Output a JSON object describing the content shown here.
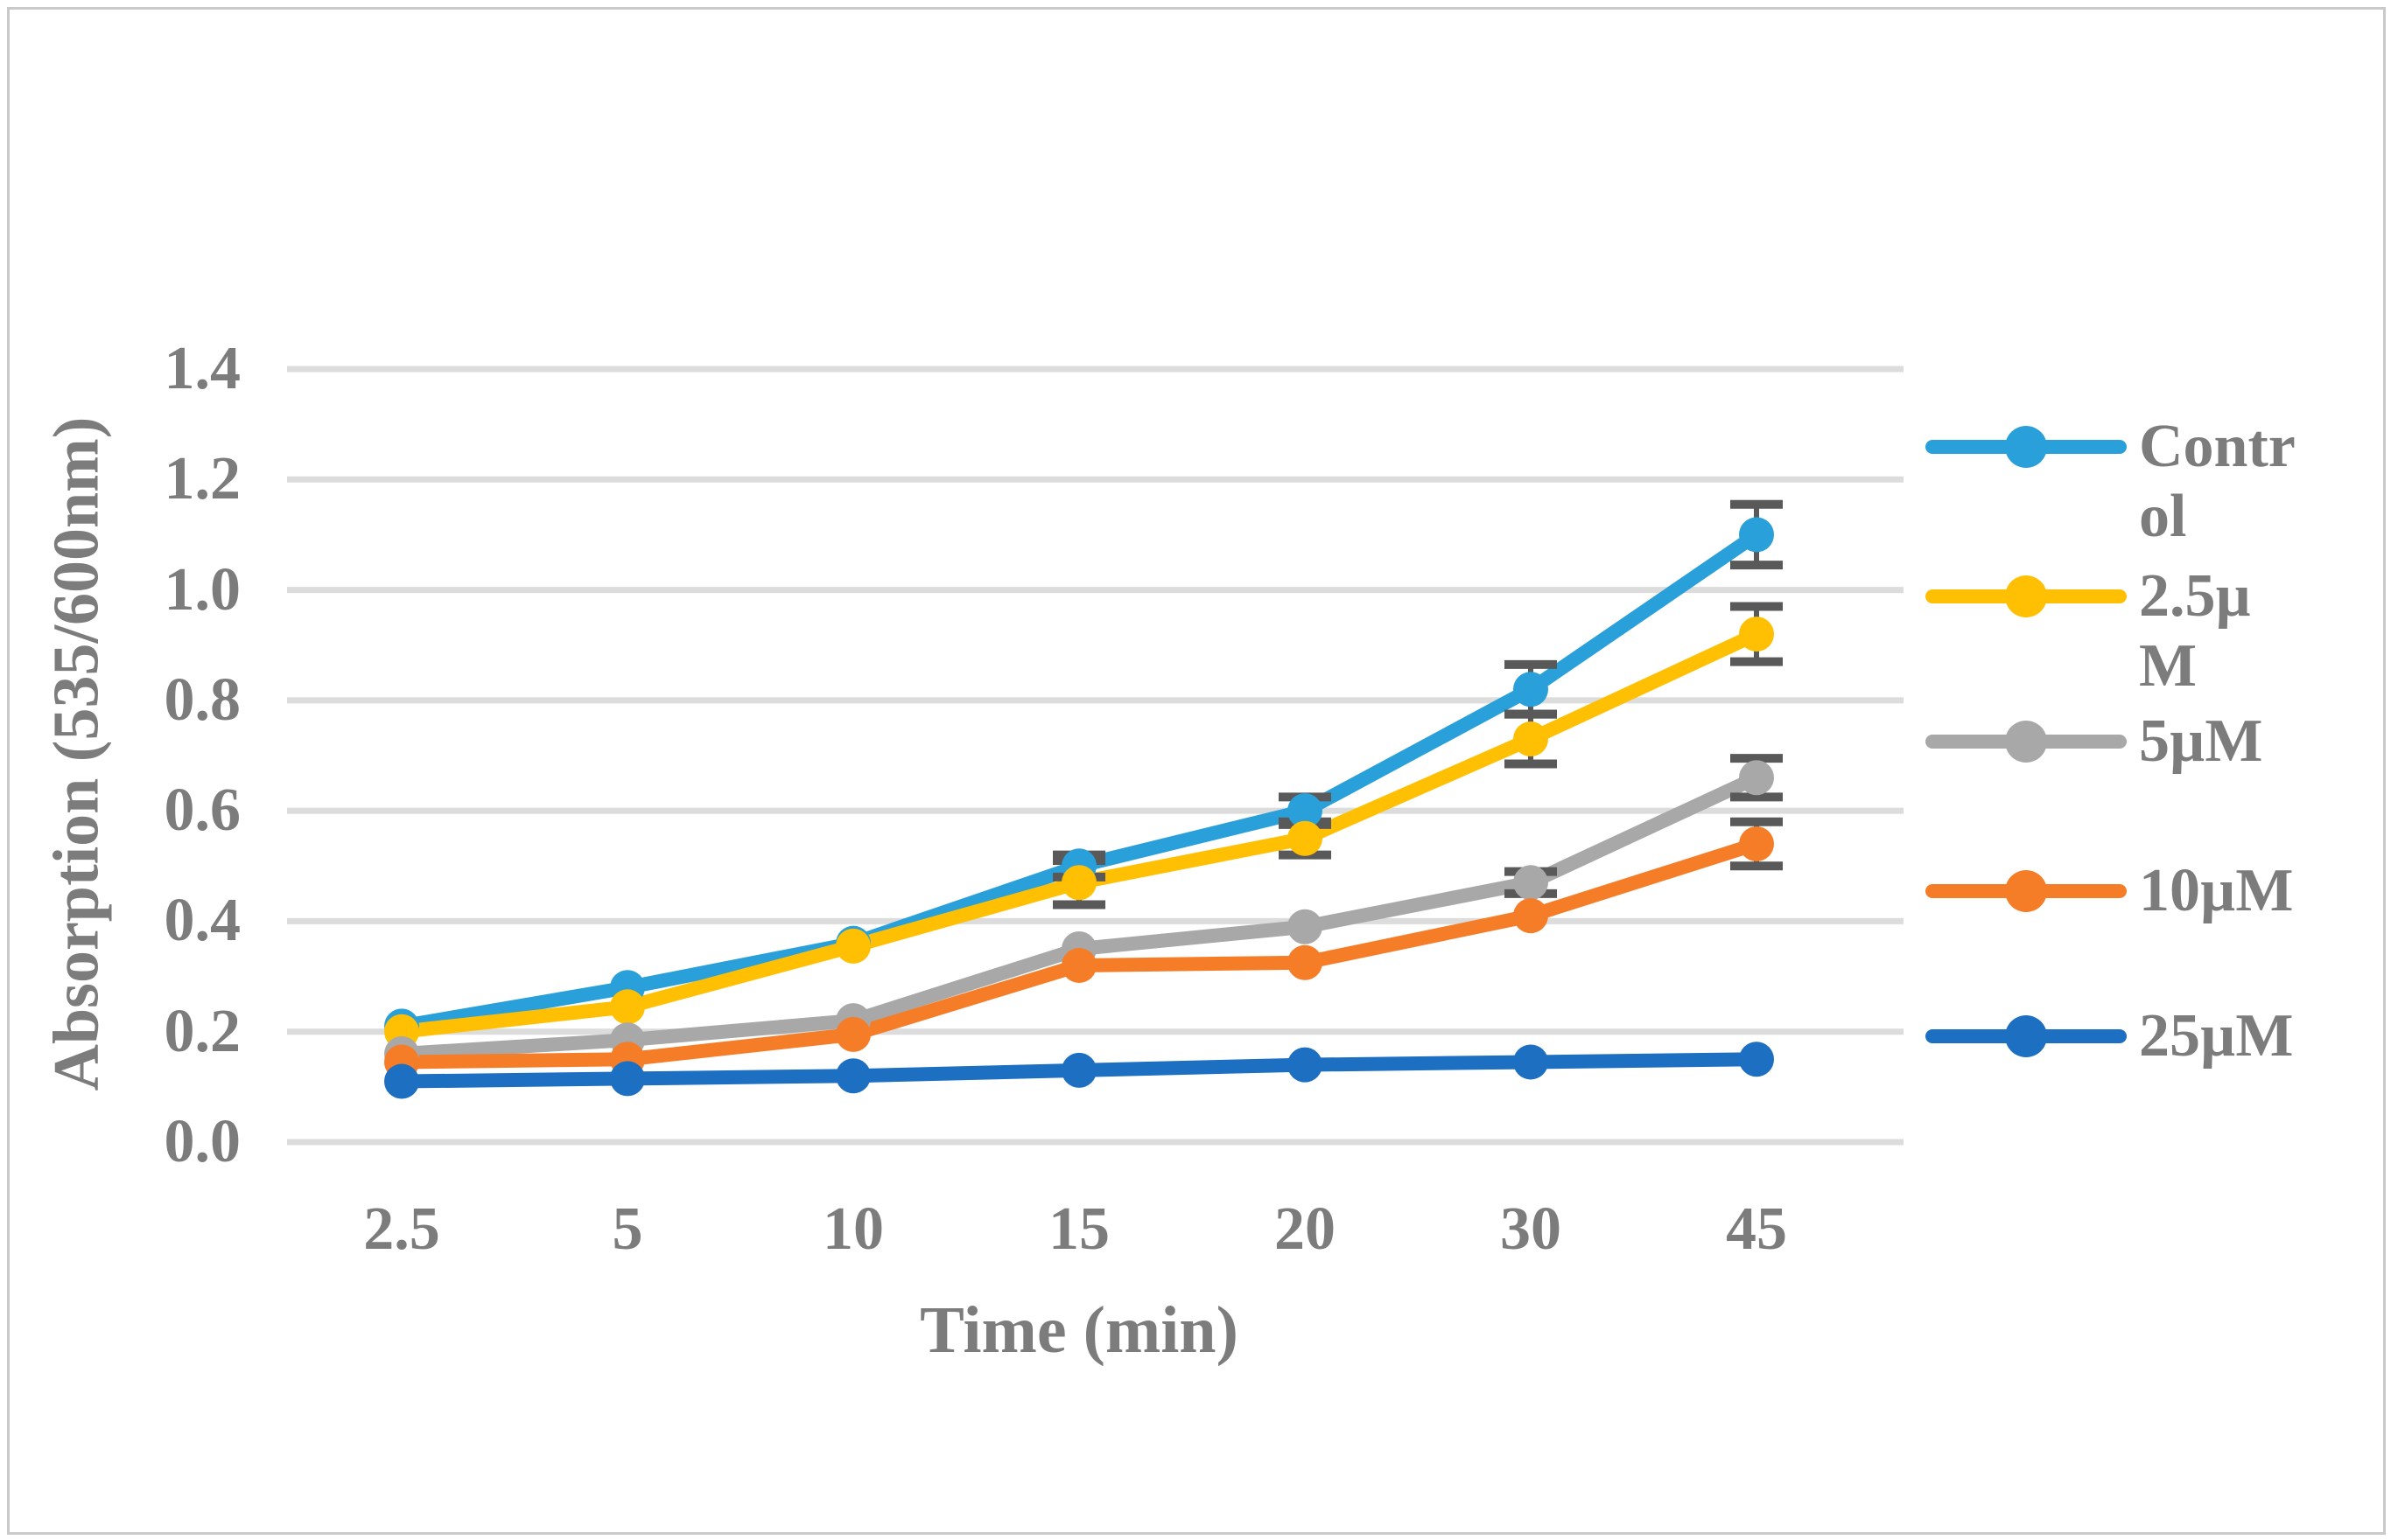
{
  "figure": {
    "background": "#ffffff",
    "border_color": "#c9c9c9",
    "text_color": "#7c7c7c",
    "gridline_color": "#dcdcdc",
    "error_bar_color": "#595959"
  },
  "chart_data": {
    "type": "line",
    "title": "",
    "xlabel": "Time (min)",
    "ylabel": "Absorption (535/600nm)",
    "categories": [
      "2.5",
      "5",
      "10",
      "15",
      "20",
      "30",
      "45"
    ],
    "y_ticks": [
      "0.0",
      "0.2",
      "0.4",
      "0.6",
      "0.8",
      "1.0",
      "1.2",
      "1.4"
    ],
    "ylim": [
      0,
      1.4
    ],
    "grid": true,
    "legend_position": "right",
    "series": [
      {
        "name": "Control",
        "color": "#2aa0da",
        "values": [
          0.21,
          0.28,
          0.36,
          0.5,
          0.6,
          0.82,
          1.1
        ],
        "errors": [
          0,
          0,
          0,
          0.02,
          0.025,
          0.045,
          0.055
        ]
      },
      {
        "name": "2.5µM",
        "color": "#ffc003",
        "values": [
          0.2,
          0.245,
          0.355,
          0.47,
          0.55,
          0.73,
          0.92
        ],
        "errors": [
          0,
          0,
          0,
          0.04,
          0.03,
          0.045,
          0.05
        ]
      },
      {
        "name": "5µM",
        "color": "#a8a8a8",
        "values": [
          0.16,
          0.185,
          0.22,
          0.35,
          0.39,
          0.47,
          0.66
        ],
        "errors": [
          0,
          0,
          0,
          0,
          0,
          0.02,
          0.035
        ]
      },
      {
        "name": "10µM",
        "color": "#f67d28",
        "values": [
          0.145,
          0.15,
          0.195,
          0.32,
          0.325,
          0.41,
          0.54
        ],
        "errors": [
          0,
          0,
          0,
          0,
          0,
          0,
          0.04
        ]
      },
      {
        "name": "25µM",
        "color": "#1d6fc2",
        "values": [
          0.11,
          0.115,
          0.12,
          0.13,
          0.14,
          0.145,
          0.15
        ],
        "errors": [
          0,
          0,
          0,
          0,
          0,
          0,
          0
        ]
      }
    ]
  }
}
